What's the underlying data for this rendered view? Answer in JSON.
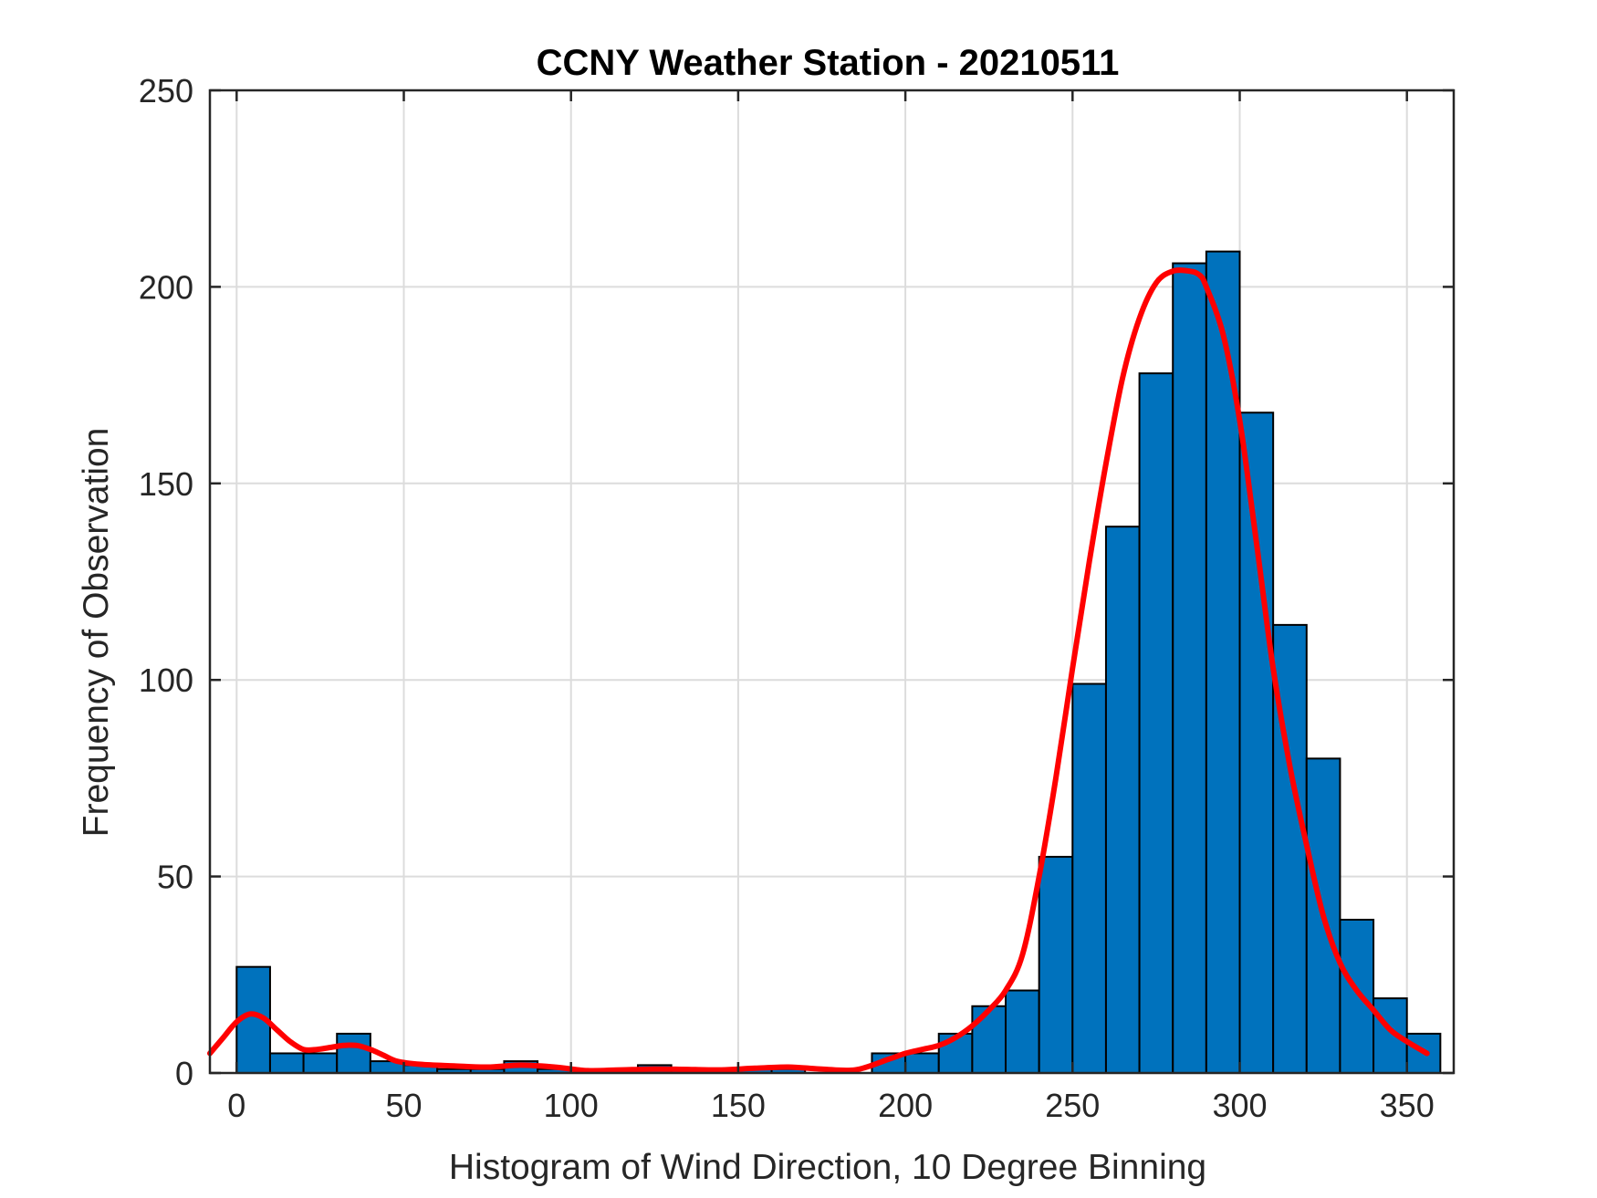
{
  "chart_data": {
    "type": "bar",
    "title": "CCNY Weather Station - 20210511",
    "xlabel": "Histogram of Wind Direction, 10 Degree Binning",
    "ylabel": "Frequency of Observation",
    "xlim": [
      -8,
      364
    ],
    "ylim": [
      0,
      250
    ],
    "grid": true,
    "bin_width": 10,
    "bin_edges_start": [
      0,
      10,
      20,
      30,
      40,
      50,
      60,
      70,
      80,
      90,
      100,
      110,
      120,
      130,
      140,
      150,
      160,
      170,
      180,
      190,
      200,
      210,
      220,
      230,
      240,
      250,
      260,
      270,
      280,
      290,
      300,
      310,
      320,
      330,
      340,
      350
    ],
    "values": [
      27,
      5,
      5,
      10,
      3,
      2,
      1,
      1,
      3,
      1,
      0,
      0,
      2,
      1,
      0,
      1,
      1,
      0,
      0,
      5,
      5,
      10,
      17,
      21,
      55,
      99,
      139,
      178,
      206,
      209,
      168,
      114,
      80,
      39,
      19,
      10
    ],
    "x_ticks": [
      0,
      50,
      100,
      150,
      200,
      250,
      300,
      350
    ],
    "x_tick_labels": [
      "0",
      "50",
      "100",
      "150",
      "200",
      "250",
      "300",
      "350"
    ],
    "y_ticks": [
      0,
      50,
      100,
      150,
      200,
      250
    ],
    "y_tick_labels": [
      "0",
      "50",
      "100",
      "150",
      "200",
      "250"
    ],
    "fit_curve": {
      "name": "density fit",
      "color": "#ff0000",
      "x": [
        -8,
        -4,
        0,
        4,
        8,
        12,
        16,
        20,
        24,
        28,
        32,
        36,
        40,
        44,
        48,
        55,
        65,
        75,
        85,
        95,
        105,
        115,
        125,
        135,
        145,
        155,
        165,
        175,
        185,
        195,
        200,
        205,
        210,
        215,
        220,
        225,
        230,
        235,
        240,
        245,
        250,
        255,
        260,
        265,
        270,
        275,
        280,
        285,
        288,
        290,
        295,
        300,
        305,
        310,
        315,
        320,
        325,
        330,
        335,
        340,
        345,
        350,
        356
      ],
      "y": [
        5,
        9,
        13,
        15,
        14,
        11,
        8,
        6,
        6,
        6.5,
        7,
        7,
        6,
        4.5,
        3,
        2.2,
        1.8,
        1.5,
        2,
        1.5,
        0.6,
        0.8,
        1,
        0.9,
        0.8,
        1.2,
        1.5,
        1.0,
        0.8,
        3.5,
        5,
        6,
        7,
        9,
        12,
        16,
        21,
        30,
        50,
        75,
        103,
        130,
        155,
        177,
        192,
        201,
        204,
        204,
        203,
        200,
        188,
        166,
        135,
        103,
        78,
        58,
        40,
        28,
        21,
        16,
        11,
        8,
        5
      ]
    },
    "colors": {
      "bar_fill": "#0072bd",
      "bar_edge": "#000000",
      "grid": "#dcdcdc",
      "axes": "#262626"
    }
  }
}
